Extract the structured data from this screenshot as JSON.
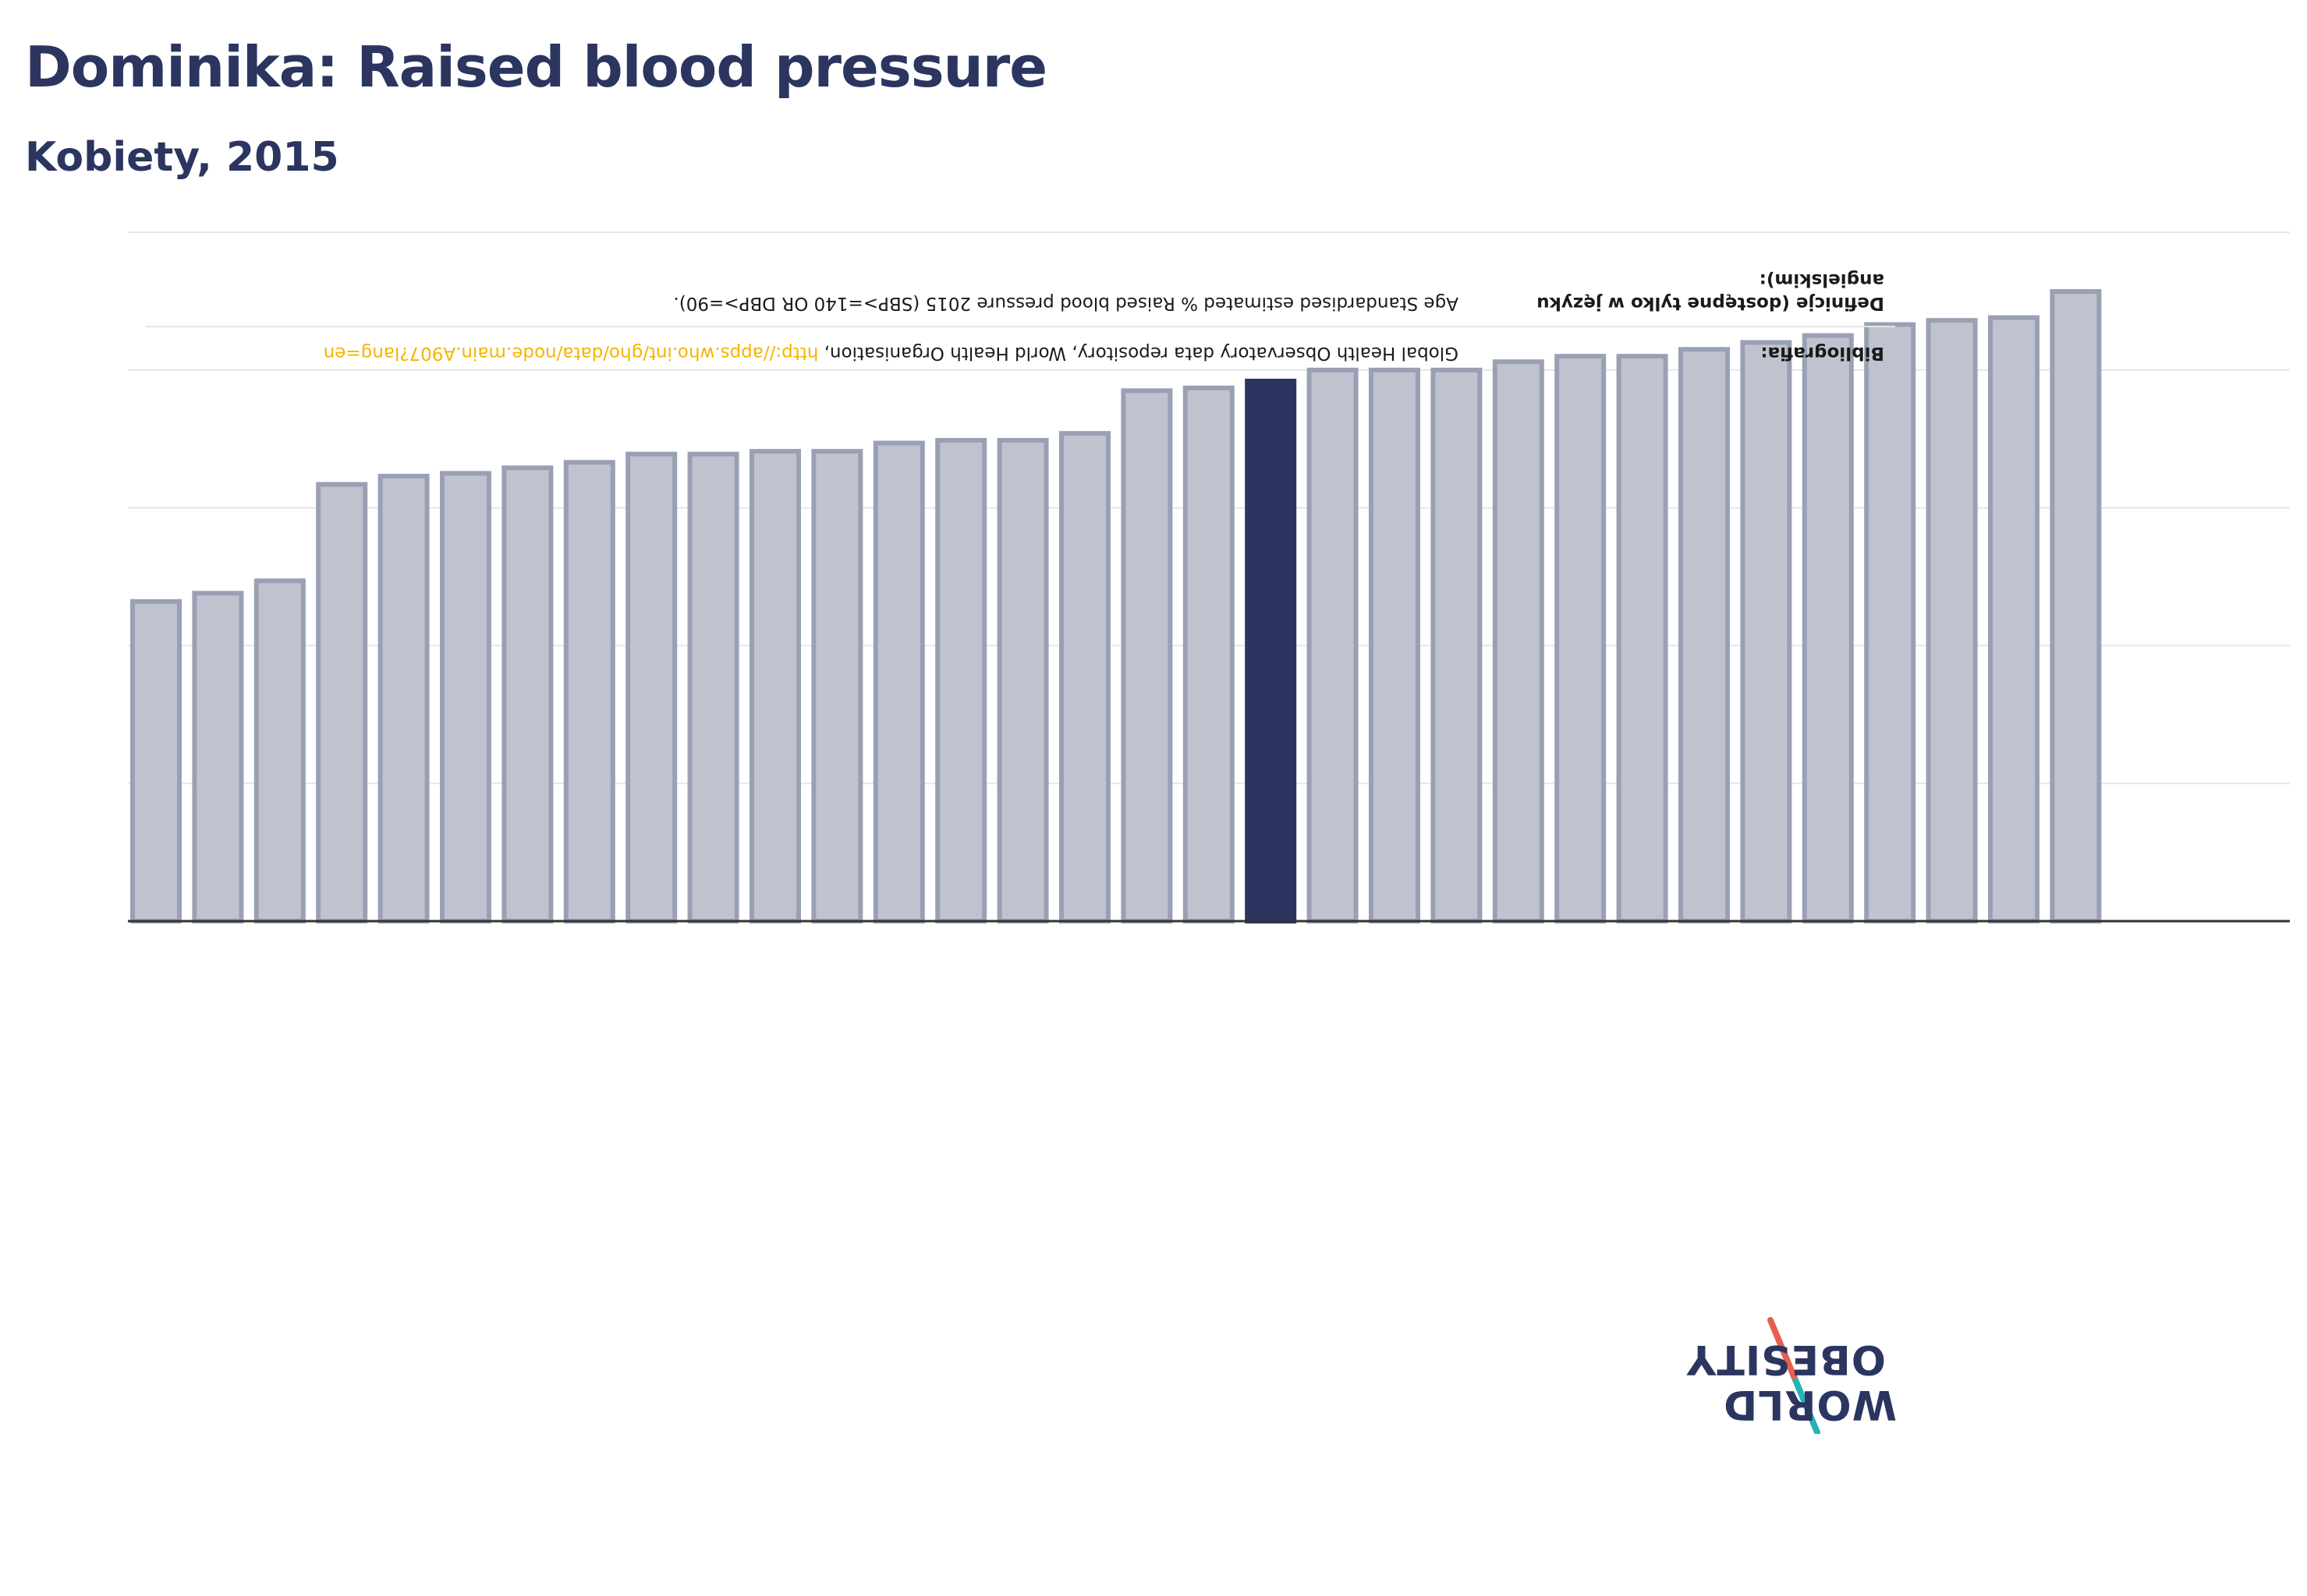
{
  "header": {
    "title": "Dominika: Raised blood pressure",
    "subtitle": "Kobiety, 2015"
  },
  "colors": {
    "highlight_bar": "#2b3560",
    "other_bar_fill": "#c0c3cf",
    "other_bar_stroke": "#9aa0b4",
    "link": "#f5b400"
  },
  "notes": {
    "bibliography_label": "Bibliografia:",
    "bibliography_text": "Global Health Observatory data repository, World Health Organisation, ",
    "bibliography_link": "http://apps.who.int/gho/data/node.main.A907?lang=en",
    "definitions_label": "Definicje (dostępne tylko w języku angielskim):",
    "definitions_text": "Age Standardised estimated % Raised blood pressure 2015 (SBP>=140 OR DBP>=90)."
  },
  "logo": {
    "line1": "WORLD",
    "line2": "OBESITY",
    "icon": "slash-logo-icon"
  },
  "chart_data": {
    "type": "bar",
    "orientation": "upside-down",
    "highlight_index": 18,
    "values": [
      23.2,
      23.8,
      24.7,
      31.7,
      32.3,
      32.5,
      32.9,
      33.3,
      33.9,
      33.9,
      34.1,
      34.1,
      34.7,
      34.9,
      34.9,
      35.4,
      38.5,
      38.7,
      39.2,
      40.0,
      40.0,
      40.0,
      40.6,
      41.0,
      41.0,
      41.5,
      42.0,
      42.5,
      43.3,
      43.6,
      43.8,
      45.7
    ],
    "ylim": [
      0,
      50
    ],
    "grid": true
  }
}
